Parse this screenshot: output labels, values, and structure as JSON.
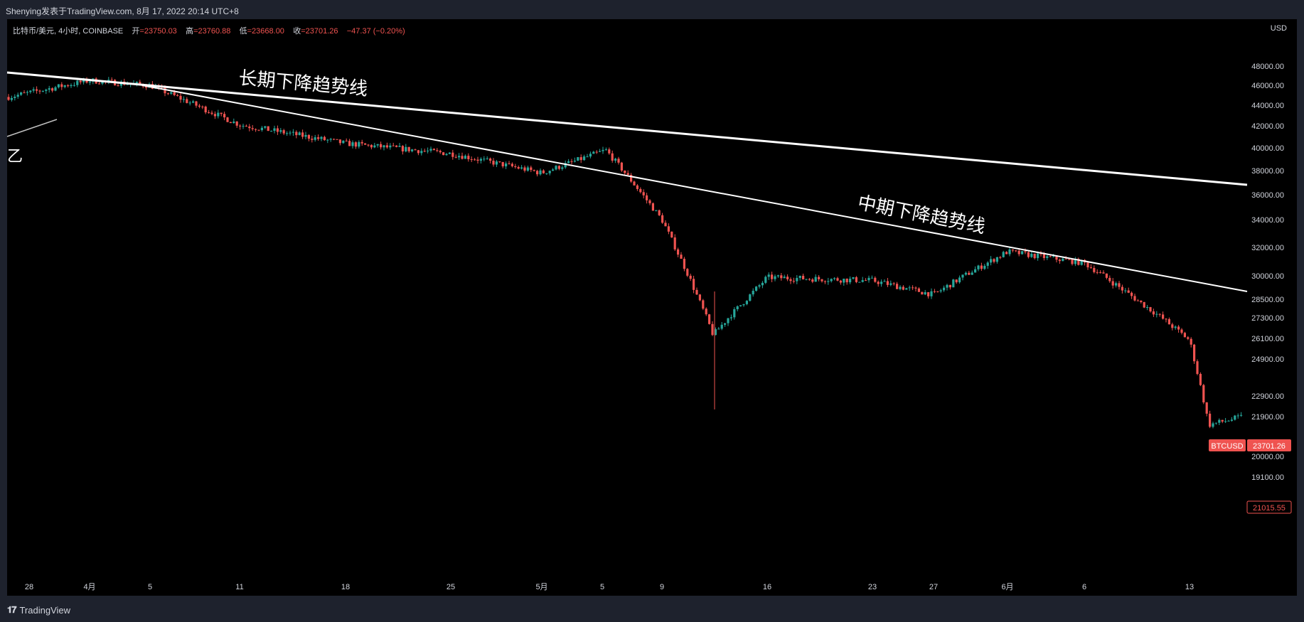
{
  "header": {
    "author_line": "Shenying发表于TradingView.com, 8月 17, 2022 20:14 UTC+8"
  },
  "legend": {
    "symbol": "比特币/美元, 4小时, COINBASE",
    "open_label": "开",
    "open": "=23750.03",
    "high_label": "高",
    "high": "=23760.88",
    "low_label": "低",
    "low": "=23668.00",
    "close_label": "收",
    "close": "=23701.26",
    "change": "−47.37 (−0.20%)"
  },
  "axis": {
    "currency": "USD"
  },
  "footer": {
    "brand": "TradingView"
  },
  "chart_data": {
    "type": "candlestick",
    "symbol": "BTCUSD",
    "interval": "4H",
    "exchange": "COINBASE",
    "y_tick_labels": [
      "48000.00",
      "46000.00",
      "44000.00",
      "42000.00",
      "40000.00",
      "38000.00",
      "36000.00",
      "34000.00",
      "32000.00",
      "30000.00",
      "28500.00",
      "27300.00",
      "26100.00",
      "24900.00",
      "22900.00",
      "21900.00",
      "20000.00",
      "19100.00"
    ],
    "x_tick_labels": [
      "28",
      "4月",
      "5",
      "11",
      "18",
      "25",
      "5月",
      "5",
      "9",
      "16",
      "23",
      "27",
      "6月",
      "6",
      "13"
    ],
    "close_trend_approx": [
      {
        "x": "28",
        "y": 44800
      },
      {
        "x": "4月",
        "y": 46500
      },
      {
        "x": "5",
        "y": 46000
      },
      {
        "x": "11",
        "y": 42100
      },
      {
        "x": "18",
        "y": 40400
      },
      {
        "x": "25",
        "y": 39500
      },
      {
        "x": "5月",
        "y": 37800
      },
      {
        "x": "5",
        "y": 39800
      },
      {
        "x": "9",
        "y": 34000
      },
      {
        "x": "12",
        "y": 26300
      },
      {
        "x": "16",
        "y": 29900
      },
      {
        "x": "23",
        "y": 29700
      },
      {
        "x": "27",
        "y": 28800
      },
      {
        "x": "6月",
        "y": 31700
      },
      {
        "x": "6",
        "y": 30900
      },
      {
        "x": "13",
        "y": 26000
      },
      {
        "x": "15",
        "y": 21500
      },
      {
        "x": "16",
        "y": 21900
      }
    ],
    "trendlines": [
      {
        "label": "长期下降趋势线"
      },
      {
        "label": "中期下降趋势线"
      }
    ],
    "left_fragment": "乙",
    "price_tags": {
      "symbol_tag": "BTCUSD",
      "last_price": "23701.26",
      "secondary_price": "21015.55"
    },
    "colors": {
      "background": "#000000",
      "up": "#26a69a",
      "down": "#ef5350",
      "trendline": "#ffffff"
    }
  }
}
